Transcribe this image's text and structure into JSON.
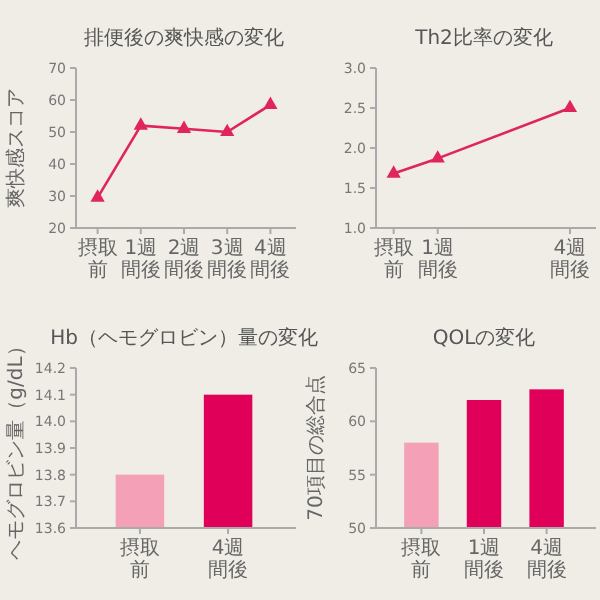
{
  "chart_data": [
    {
      "type": "line",
      "title": "排便後の爽快感の変化",
      "ylabel": "爽快感スコア",
      "categories": [
        "摂取前",
        "1週間後",
        "2週間後",
        "3週間後",
        "4週間後"
      ],
      "series": [
        {
          "color": "#e0245e",
          "values": [
            29.5,
            52,
            51,
            50,
            58.5
          ]
        }
      ],
      "ylim": [
        20,
        70
      ],
      "yticks": [
        20,
        30,
        40,
        50,
        60,
        70
      ],
      "marker": "triangle",
      "grid": false
    },
    {
      "type": "line",
      "title": "Th2比率の変化",
      "x": [
        0,
        1,
        4
      ],
      "xlim": [
        -0.4,
        4.5
      ],
      "xticks": [
        {
          "value": 0,
          "label": "摂取前"
        },
        {
          "value": 1,
          "label": "1週間後"
        },
        {
          "value": 4,
          "label": "4週間後"
        }
      ],
      "series": [
        {
          "color": "#e0245e",
          "values": [
            1.68,
            1.87,
            2.5
          ]
        }
      ],
      "ylim": [
        1,
        3
      ],
      "yticks": [
        {
          "value": 1,
          "label": "1.0"
        },
        {
          "value": 1.5,
          "label": "1.5"
        },
        {
          "value": 2,
          "label": "2.0"
        },
        {
          "value": 2.5,
          "label": "2.5"
        },
        {
          "value": 3,
          "label": "3.0"
        }
      ],
      "marker": "triangle",
      "grid": false
    },
    {
      "type": "bar",
      "title": "Hb（ヘモグロビン）量の変化",
      "ylabel": "ヘモグロビン量（g/dL）",
      "categories": [
        "摂取前",
        "4週間後"
      ],
      "values": [
        13.8,
        14.1
      ],
      "colors": [
        "#f4a0b6",
        "#e0005a"
      ],
      "ylim": [
        13.6,
        14.2
      ],
      "yticks": [
        13.6,
        13.7,
        13.8,
        13.9,
        {
          "value": 14,
          "label": "14.0"
        },
        14.1,
        14.2
      ],
      "grid": false
    },
    {
      "type": "bar",
      "title": "QOLの変化",
      "ylabel": "70項目の総合点",
      "categories": [
        "摂取前",
        "1週間後",
        "4週間後"
      ],
      "values": [
        58,
        62,
        63
      ],
      "colors": [
        "#f4a0b6",
        "#e0005a",
        "#e0005a"
      ],
      "ylim": [
        50,
        65
      ],
      "yticks": [
        50,
        55,
        60,
        65
      ],
      "grid": false
    }
  ]
}
